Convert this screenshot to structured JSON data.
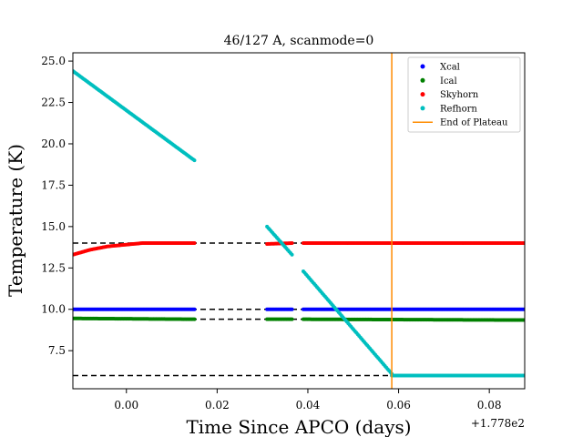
{
  "chart_data": {
    "type": "scatter",
    "title": "46/127 A, scanmode=0",
    "xlabel": "Time Since APCO (days)",
    "ylabel": "Temperature (K)",
    "x_offset_label": "+1.778e2",
    "xlim": [
      -0.0118,
      0.0878
    ],
    "ylim": [
      5.2,
      25.5
    ],
    "x_ticks": [
      0.0,
      0.02,
      0.04,
      0.06,
      0.08
    ],
    "x_tick_labels": [
      "0.00",
      "0.02",
      "0.04",
      "0.06",
      "0.08"
    ],
    "y_ticks": [
      7.5,
      10.0,
      12.5,
      15.0,
      17.5,
      20.0,
      22.5,
      25.0
    ],
    "y_tick_labels": [
      "7.5",
      "10.0",
      "12.5",
      "15.0",
      "17.5",
      "20.0",
      "22.5",
      "25.0"
    ],
    "grid": false,
    "legend_position": "top-right",
    "reference_lines": [
      {
        "y": 14.0,
        "style": "dashed",
        "color": "#000000"
      },
      {
        "y": 10.0,
        "style": "dashed",
        "color": "#000000"
      },
      {
        "y": 9.4,
        "style": "dashed",
        "color": "#000000"
      },
      {
        "y": 6.0,
        "style": "dashed",
        "color": "#000000"
      }
    ],
    "series": [
      {
        "name": "Xcal",
        "color": "#0000ff",
        "segments": [
          {
            "x_start": -0.0118,
            "x_end": 0.015,
            "values": [
              10.0,
              10.0
            ]
          },
          {
            "x_start": 0.031,
            "x_end": 0.0365,
            "values": [
              10.0,
              10.0
            ]
          },
          {
            "x_start": 0.039,
            "x_end": 0.0878,
            "values": [
              10.0,
              10.0
            ]
          }
        ]
      },
      {
        "name": "Ical",
        "color": "#008000",
        "segments": [
          {
            "x_start": -0.0118,
            "x_end": 0.015,
            "values": [
              9.45,
              9.4
            ]
          },
          {
            "x_start": 0.031,
            "x_end": 0.0365,
            "values": [
              9.4,
              9.4
            ]
          },
          {
            "x_start": 0.039,
            "x_end": 0.0878,
            "values": [
              9.4,
              9.35
            ]
          }
        ]
      },
      {
        "name": "Skyhorn",
        "color": "#ff0000",
        "segments": [
          {
            "x_start": -0.0118,
            "x_end": 0.015,
            "values": [
              13.3,
              13.6,
              13.8,
              13.9,
              14.0,
              14.0,
              14.0,
              14.0
            ]
          },
          {
            "x_start": 0.031,
            "x_end": 0.0365,
            "values": [
              13.95,
              14.0
            ]
          },
          {
            "x_start": 0.039,
            "x_end": 0.0878,
            "values": [
              14.0,
              14.0
            ]
          }
        ]
      },
      {
        "name": "Refhorn",
        "color": "#00bfbf",
        "segments": [
          {
            "x_start": -0.0118,
            "x_end": 0.015,
            "values": [
              24.4,
              19.0
            ]
          },
          {
            "x_start": 0.031,
            "x_end": 0.0365,
            "values": [
              15.0,
              13.3
            ]
          },
          {
            "x_start": 0.039,
            "x_end": 0.0585,
            "values": [
              12.3,
              6.1
            ]
          },
          {
            "x_start": 0.0585,
            "x_end": 0.0878,
            "values": [
              6.0,
              6.0
            ]
          }
        ]
      }
    ],
    "vertical_line": {
      "name": "End of Plateau",
      "x": 0.0585,
      "color": "#ff8c00"
    }
  }
}
